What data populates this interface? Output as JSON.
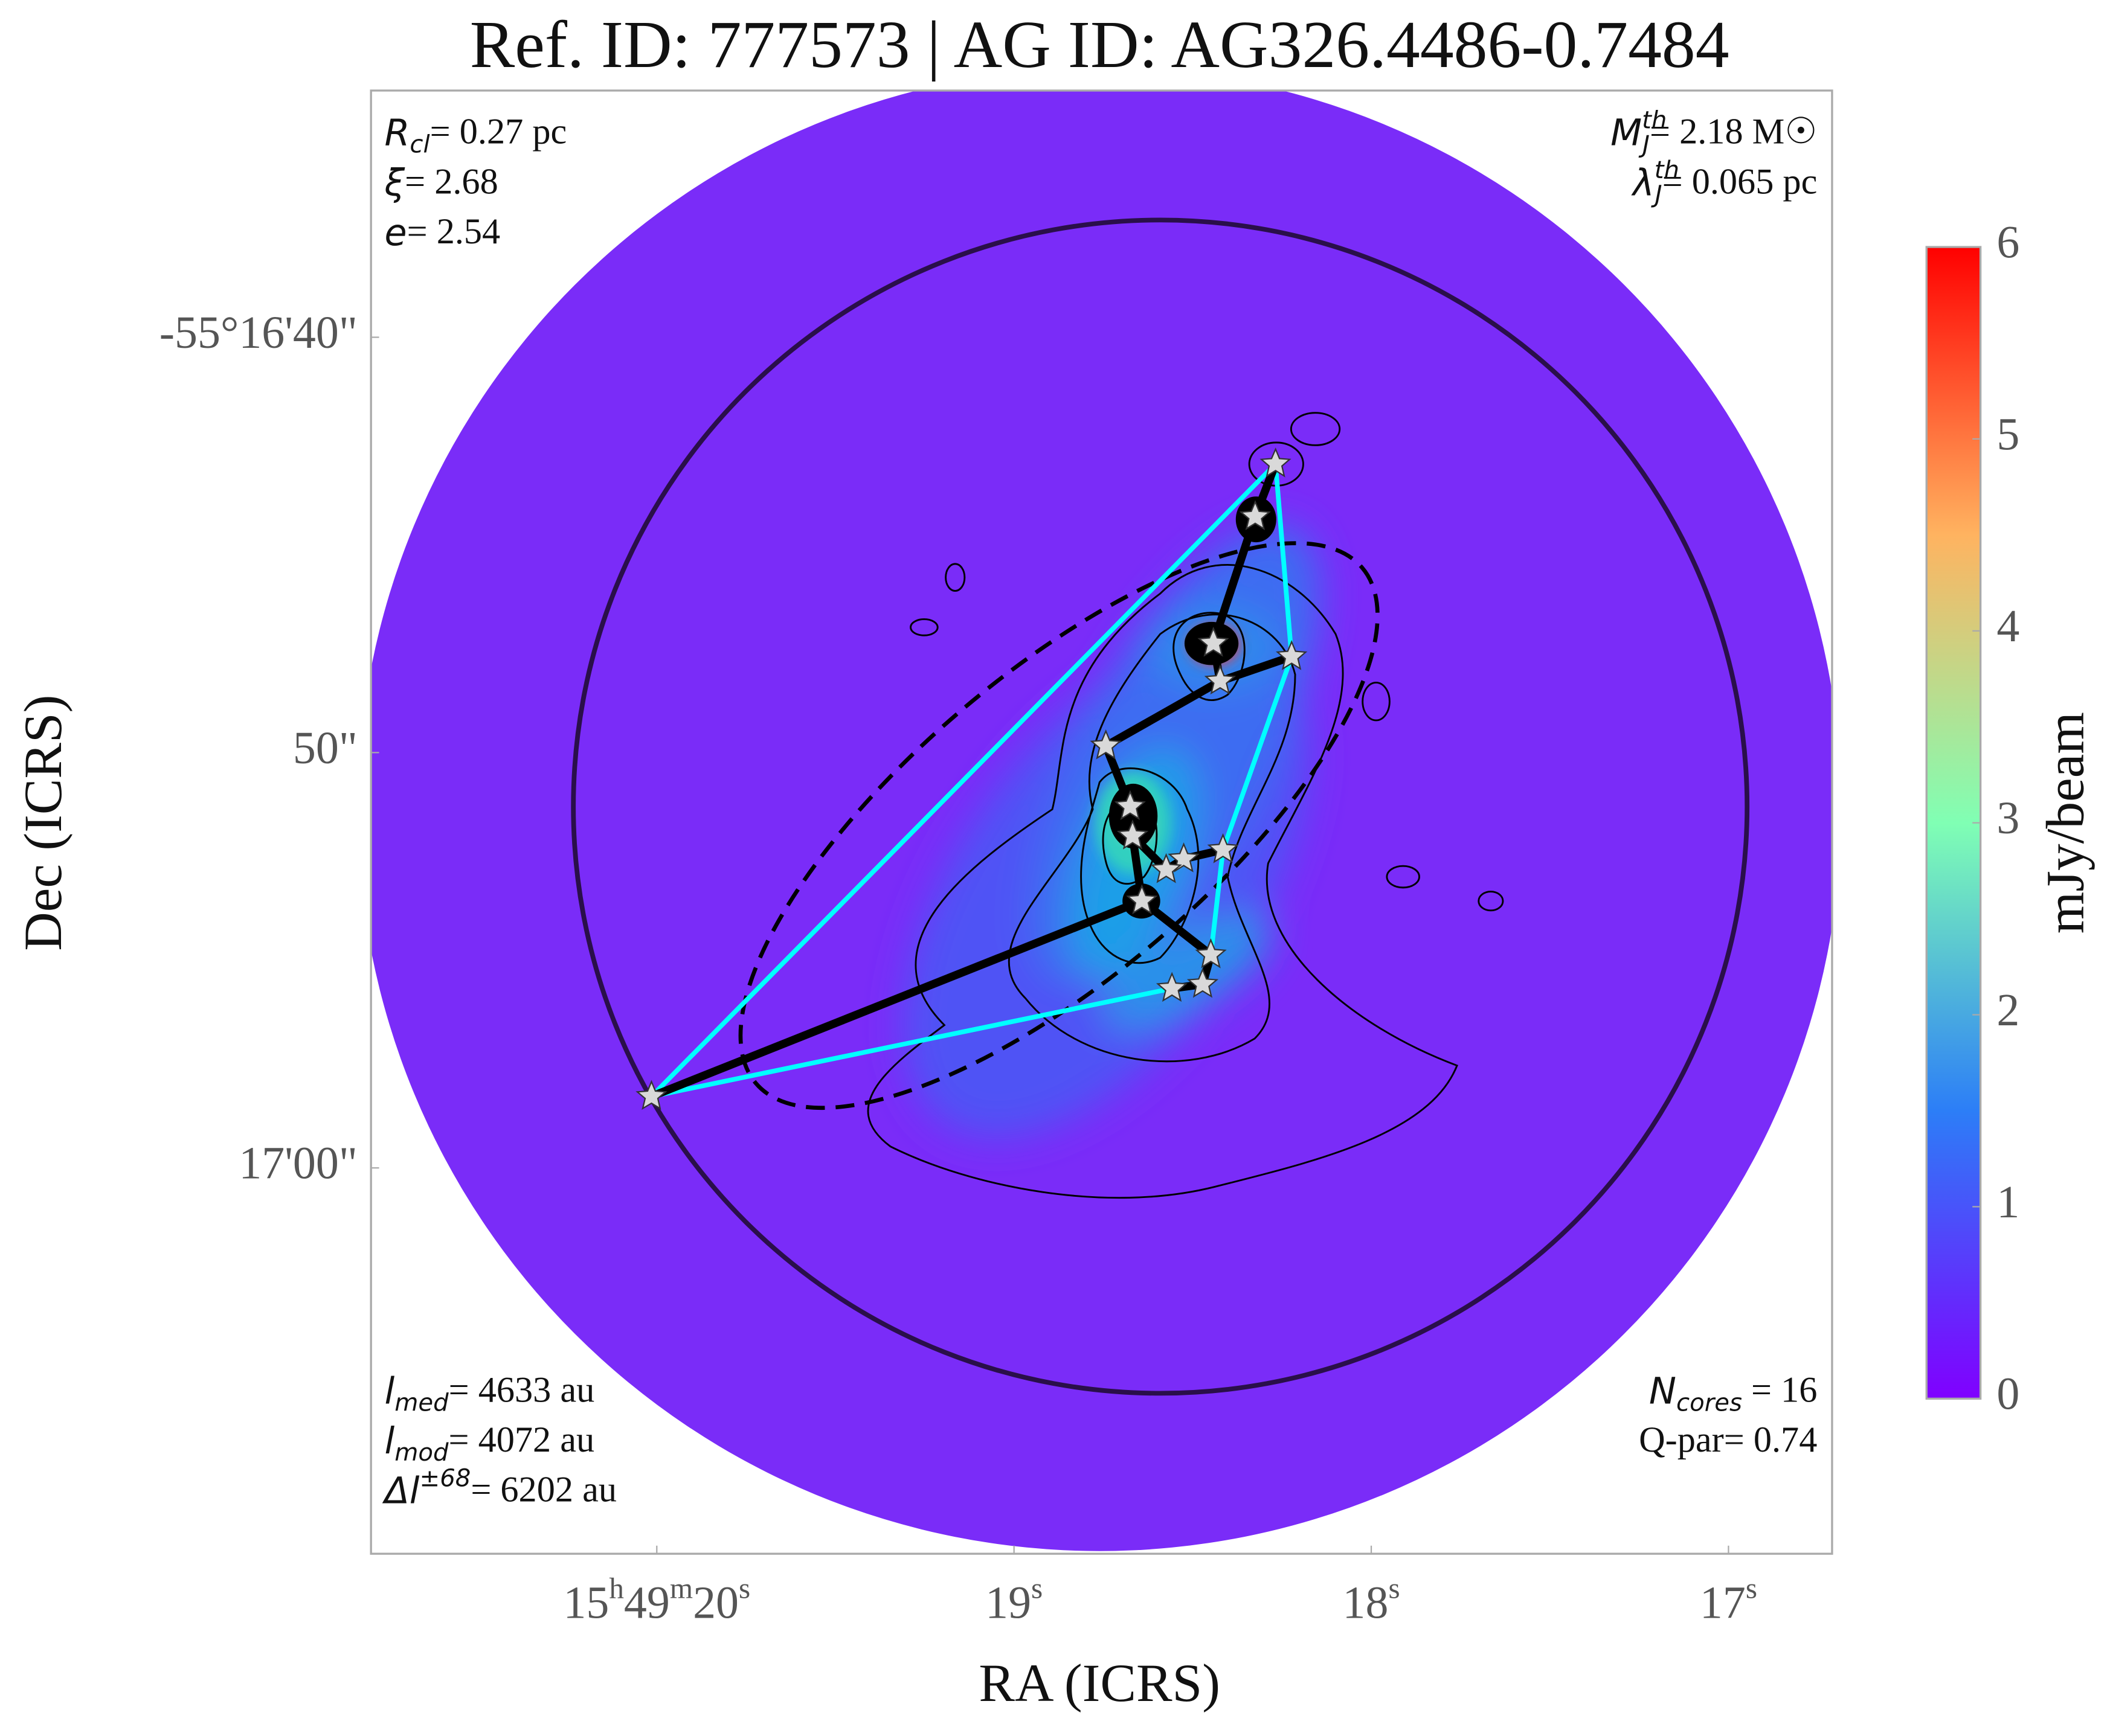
{
  "chart_data": {
    "type": "scatter",
    "title": "Ref. ID: 777573 | AG ID: AG326.4486-0.7484",
    "x_label": "RA (ICRS)",
    "y_label": "Dec (ICRS)",
    "xlim": [
      20.8,
      16.71
    ],
    "ylim": [
      34.06,
      69.29
    ],
    "xticks": [
      {
        "value": 20,
        "label": "15h49m20s"
      },
      {
        "value": 19,
        "label": "19s"
      },
      {
        "value": 18,
        "label": "18s"
      },
      {
        "value": 17,
        "label": "17s"
      }
    ],
    "yticks": [
      {
        "value": 40,
        "label": "-55°16'40\""
      },
      {
        "value": 50,
        "label": "50\""
      },
      {
        "value": 60,
        "label": "17'00\""
      }
    ],
    "x": [
      18.268,
      18.325,
      18.442,
      18.223,
      18.423,
      18.743,
      18.675,
      18.668,
      18.415,
      18.525,
      18.574,
      18.642,
      18.449,
      18.558,
      18.472,
      20.015
    ],
    "values": [
      43.05,
      44.32,
      47.37,
      47.69,
      48.28,
      49.84,
      51.3,
      52.01,
      52.34,
      52.56,
      52.82,
      53.57,
      54.87,
      55.68,
      55.58,
      58.28
    ],
    "color": "#d9d9d9",
    "mst_edges": [
      [
        0,
        1
      ],
      [
        1,
        2
      ],
      [
        2,
        4
      ],
      [
        4,
        3
      ],
      [
        4,
        5
      ],
      [
        5,
        6
      ],
      [
        6,
        7
      ],
      [
        7,
        11
      ],
      [
        11,
        12
      ],
      [
        11,
        15
      ],
      [
        12,
        14
      ],
      [
        14,
        13
      ],
      [
        7,
        10
      ],
      [
        10,
        9
      ],
      [
        9,
        8
      ]
    ],
    "mst_color": "#000000",
    "hull": [
      0,
      3,
      8,
      12,
      14,
      13,
      15
    ],
    "hull_color": "#00ffff",
    "colorbar": {
      "label": "mJy/beam",
      "lim": [
        0,
        6
      ],
      "ticks": [
        0,
        1,
        2,
        3,
        4,
        5,
        6
      ],
      "colors": [
        "#8000ff",
        "#2c7ef7",
        "#80ffb4",
        "#ffb360",
        "#ff0000"
      ]
    },
    "annotations_top_left": [
      {
        "symbol": "R",
        "sub": "cl",
        "text": "= 0.27 pc"
      },
      {
        "symbol": "ξ",
        "text": "= 2.68"
      },
      {
        "symbol": "e",
        "text": "= 2.54"
      }
    ],
    "annotations_top_right": [
      {
        "symbol": "M",
        "sub": "J",
        "sup": "th",
        "text": "= 2.18 M☉"
      },
      {
        "symbol": "λ",
        "sub": "J",
        "sup": "th",
        "text": "= 0.065 pc"
      }
    ],
    "annotations_bottom_left": [
      {
        "symbol": "l",
        "sub": "med",
        "text": "= 4633 au"
      },
      {
        "symbol": "l",
        "sub": "mod",
        "text": "= 4072 au"
      },
      {
        "symbol": "Δl",
        "sup": "±68",
        "text": "= 6202 au"
      }
    ],
    "annotations_bottom_right": [
      {
        "symbol": "N",
        "sub": "cores",
        "text": " = 16"
      },
      {
        "text": "Q-par= 0.74"
      }
    ]
  }
}
